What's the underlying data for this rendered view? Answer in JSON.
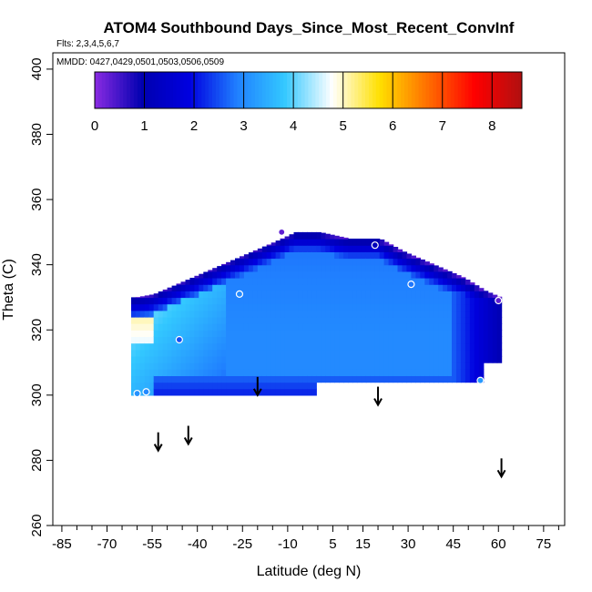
{
  "chart_data": {
    "type": "heatmap",
    "title": "ATOM4 Southbound Days_Since_Most_Recent_ConvInf",
    "flights_note": "Flts: 2,3,4,5,6,7",
    "dates_note": "MMDD: 0427,0429,0501,0503,0506,0509",
    "xlabel": "Latitude (deg N)",
    "ylabel": "Theta (C)",
    "xlim": [
      -88,
      82
    ],
    "ylim": [
      260,
      405
    ],
    "x_ticks": [
      -85,
      -70,
      -55,
      -40,
      -25,
      -10,
      5,
      15,
      30,
      45,
      60,
      75
    ],
    "y_ticks": [
      260,
      280,
      300,
      320,
      340,
      360,
      380,
      400
    ],
    "colorbar": {
      "range": [
        0,
        8.6
      ],
      "ticks": [
        0,
        1,
        2,
        3,
        4,
        5,
        6,
        7,
        8
      ],
      "colors": [
        "#8a2be2",
        "#0000b0",
        "#0000e0",
        "#2080ff",
        "#33c8ff",
        "#ffffff",
        "#ffe000",
        "#ff7000",
        "#ff0000",
        "#b01010"
      ]
    },
    "tropopause_arrows": [
      {
        "lat": -53,
        "theta": 283
      },
      {
        "lat": -43,
        "theta": 285
      },
      {
        "lat": -20,
        "theta": 300
      },
      {
        "lat": 20,
        "theta": 297
      },
      {
        "lat": 61,
        "theta": 275
      }
    ],
    "markers": [
      {
        "lat": -12,
        "theta": 350,
        "value": 0.3
      },
      {
        "lat": 19,
        "theta": 346,
        "value": 1.2
      },
      {
        "lat": 31,
        "theta": 334,
        "value": 2.8
      },
      {
        "lat": 60,
        "theta": 329,
        "value": 0.3
      },
      {
        "lat": -26,
        "theta": 331,
        "value": 3.0
      },
      {
        "lat": -46,
        "theta": 317,
        "value": 2.5
      },
      {
        "lat": -57,
        "theta": 301,
        "value": 3.0
      },
      {
        "lat": -60,
        "theta": 300.5,
        "value": 3.1
      },
      {
        "lat": 54,
        "theta": 304.5,
        "value": 3.2
      }
    ]
  }
}
